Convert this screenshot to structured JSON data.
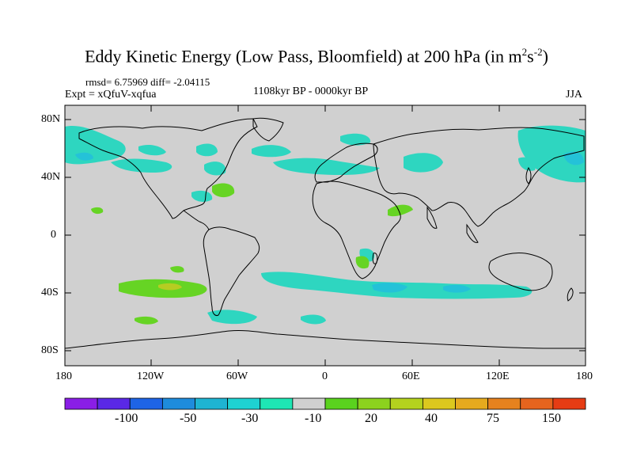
{
  "title": {
    "main": "Eddy Kinetic Energy (Low Pass, Bloomfield) at 200 hPa (in m",
    "sup1": "2",
    "mid": "s",
    "sup2": "-2",
    "end": ")"
  },
  "stats": "rmsd= 6.75969 diff= -2.04115",
  "expt": "Expt = xQfuV-xqfua",
  "period": "1108kyr BP - 0000kyr BP",
  "season": "JJA",
  "lat_labels": [
    "80N",
    "40N",
    "0",
    "40S",
    "80S"
  ],
  "lon_labels": [
    "180",
    "120W",
    "60W",
    "0",
    "60E",
    "120E",
    "180"
  ],
  "colorbar": {
    "colors": [
      "#8a1ee6",
      "#5a28e6",
      "#1e64e6",
      "#1e8cdc",
      "#1eb4d2",
      "#1ed2d2",
      "#1ee6b4",
      "#d0d0d0",
      "#5ad21e",
      "#8cd21e",
      "#b4d21e",
      "#dcc81e",
      "#e6aa1e",
      "#e6821e",
      "#e6641e",
      "#e63c14"
    ],
    "labels": [
      "-100",
      "-50",
      "-30",
      "-10",
      "20",
      "40",
      "75",
      "150"
    ]
  },
  "anomaly_colors": {
    "neg_weak": "#2ed6c0",
    "neg_mid": "#24c2d8",
    "pos_weak": "#66d424",
    "pos_mid": "#b6cc22",
    "background": "#d0d0d0"
  }
}
